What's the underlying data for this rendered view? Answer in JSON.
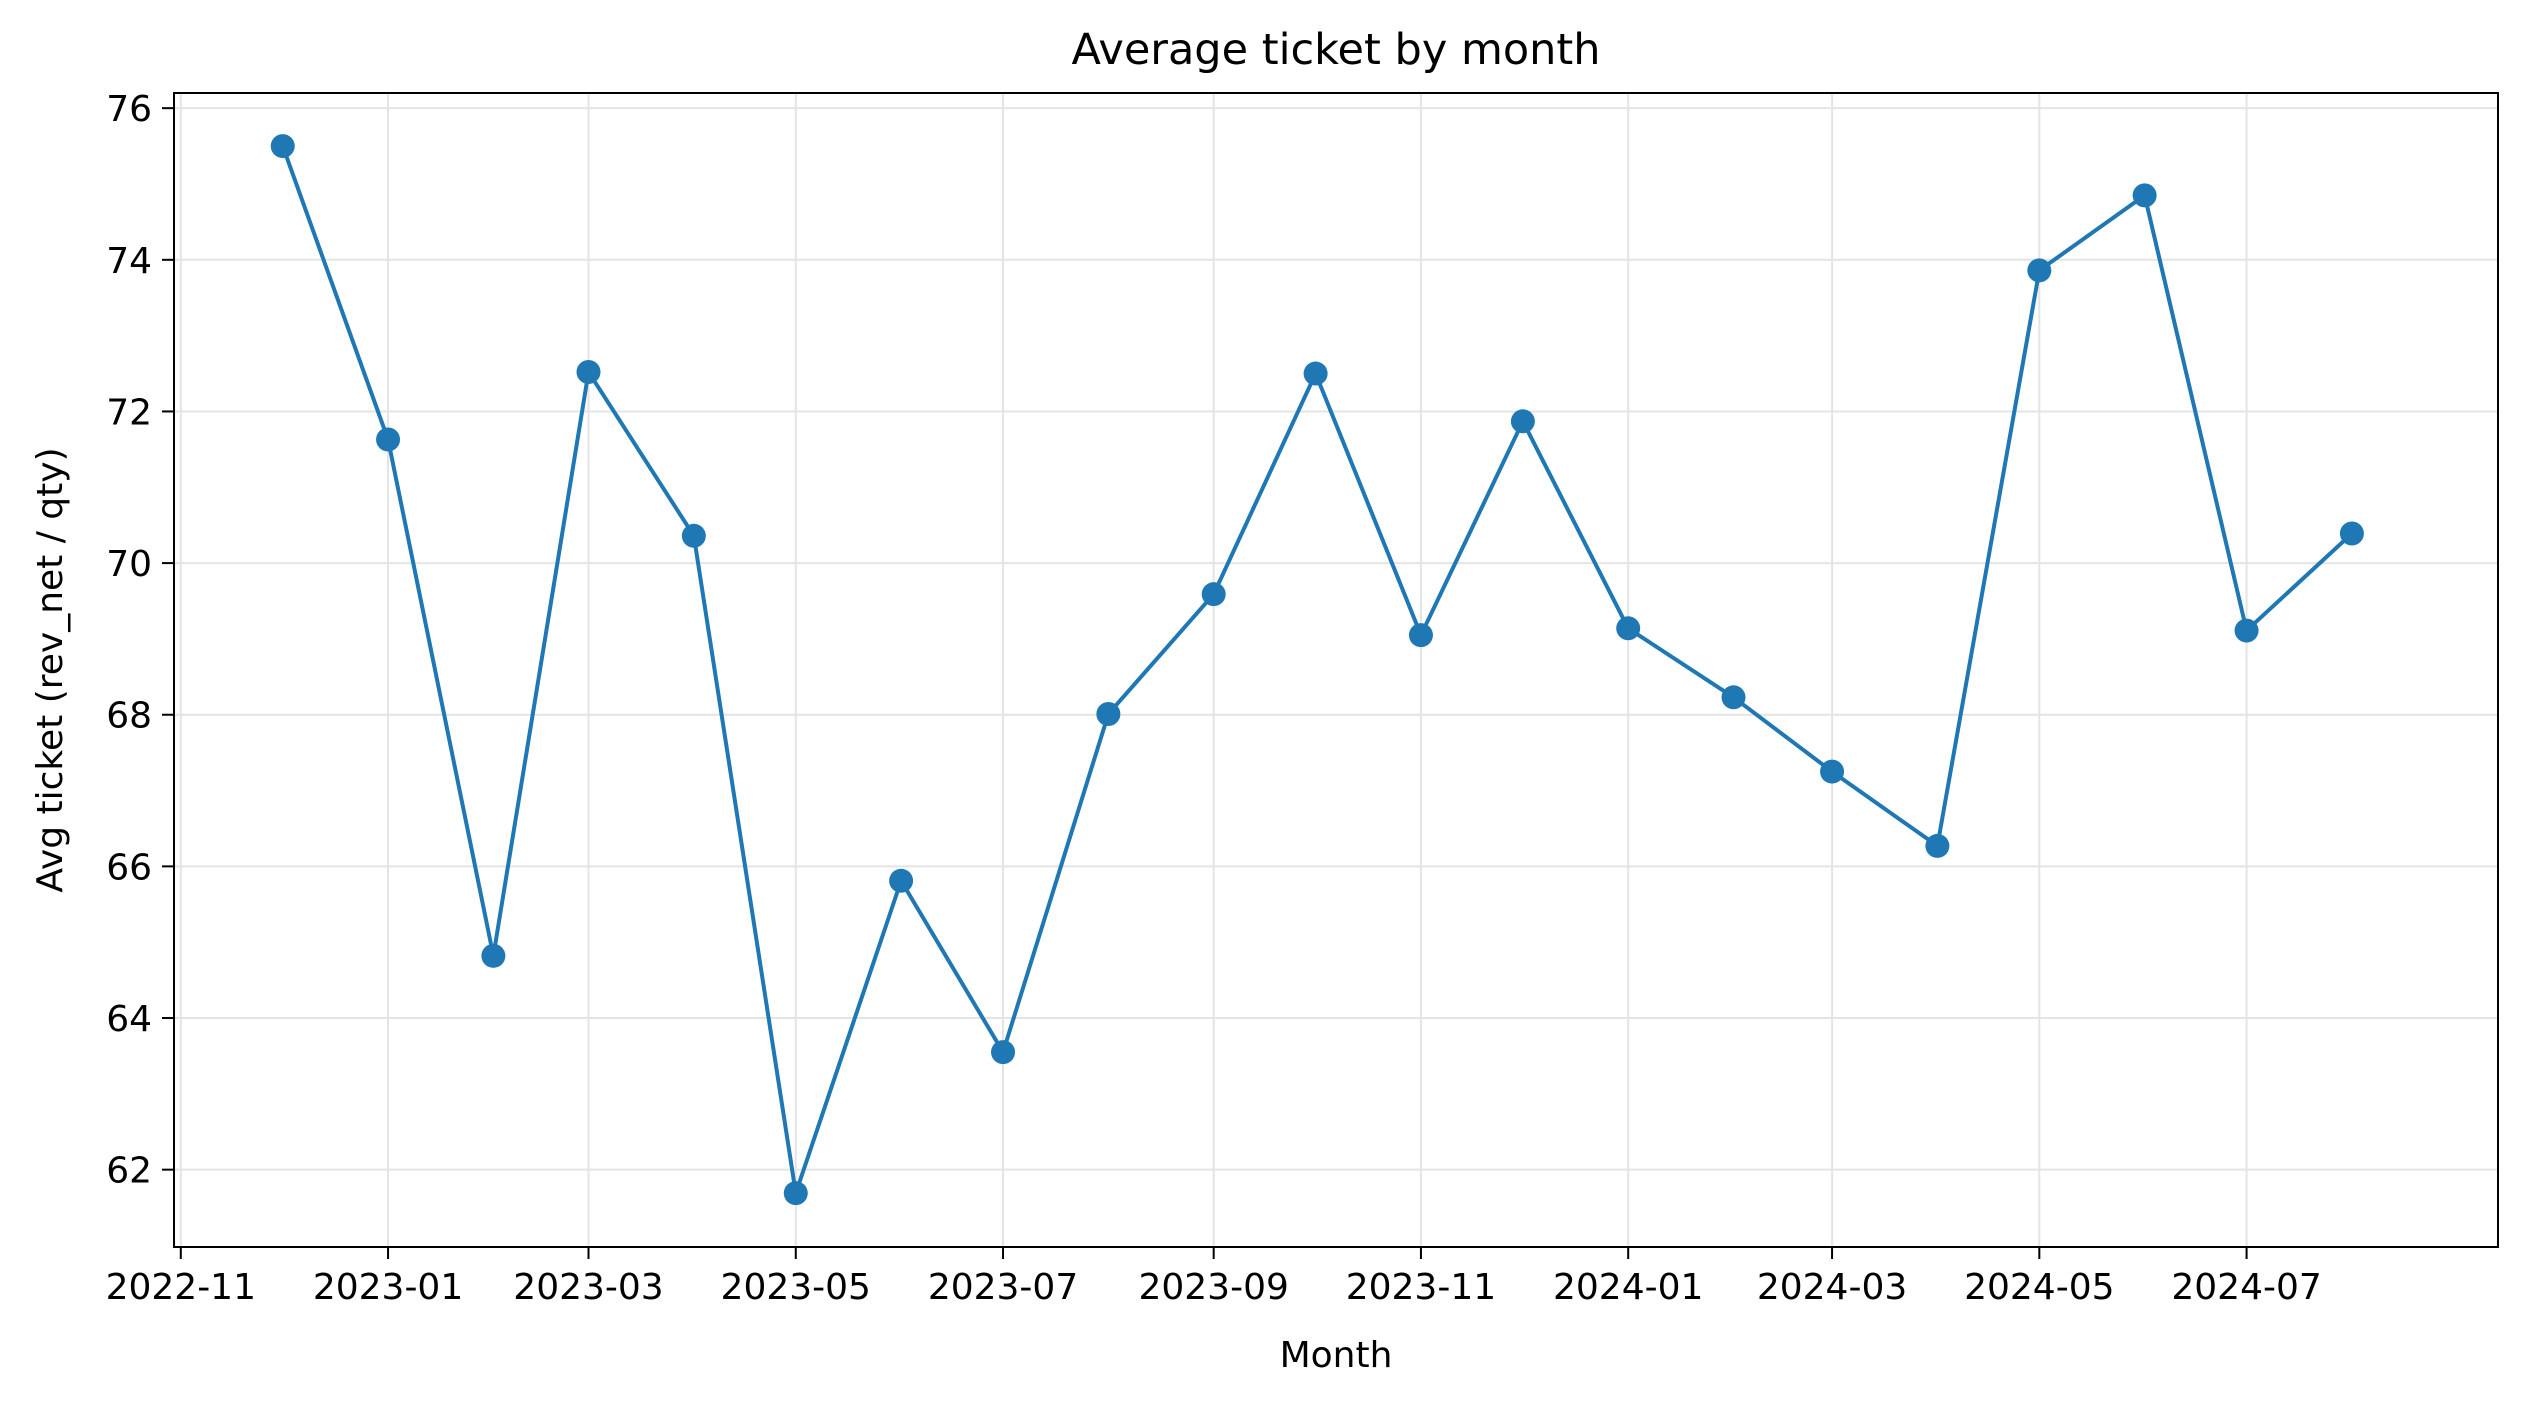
{
  "chart_data": {
    "type": "line",
    "title": "Average ticket by month",
    "xlabel": "Month",
    "ylabel": "Avg ticket (rev_net / qty)",
    "x_tick_labels": [
      "2022-11",
      "2023-01",
      "2023-03",
      "2023-05",
      "2023-07",
      "2023-09",
      "2023-11",
      "2024-01",
      "2024-03",
      "2024-05",
      "2024-07"
    ],
    "y_tick_labels": [
      "62",
      "64",
      "66",
      "68",
      "70",
      "72",
      "74",
      "76"
    ],
    "y_ticks": [
      62,
      64,
      66,
      68,
      70,
      72,
      74,
      76
    ],
    "ylim": [
      60.98,
      76.2
    ],
    "xlim": [
      "2022-10-30",
      "2024-09-13"
    ],
    "grid": true,
    "legend": false,
    "marker": "circle",
    "line_color": "#1f77b4",
    "x": [
      "2022-12-01",
      "2023-01-01",
      "2023-02-01",
      "2023-03-01",
      "2023-04-01",
      "2023-05-01",
      "2023-06-01",
      "2023-07-01",
      "2023-08-01",
      "2023-09-01",
      "2023-10-01",
      "2023-11-01",
      "2023-12-01",
      "2024-01-01",
      "2024-02-01",
      "2024-03-01",
      "2024-04-01",
      "2024-05-01",
      "2024-06-01",
      "2024-07-01",
      "2024-08-01"
    ],
    "series": [
      {
        "values": [
          75.5,
          71.63,
          64.82,
          72.52,
          70.36,
          61.69,
          65.81,
          63.55,
          68.01,
          69.59,
          72.5,
          69.05,
          71.87,
          69.14,
          68.23,
          67.25,
          66.27,
          73.86,
          74.85,
          69.11,
          70.39
        ]
      }
    ]
  }
}
